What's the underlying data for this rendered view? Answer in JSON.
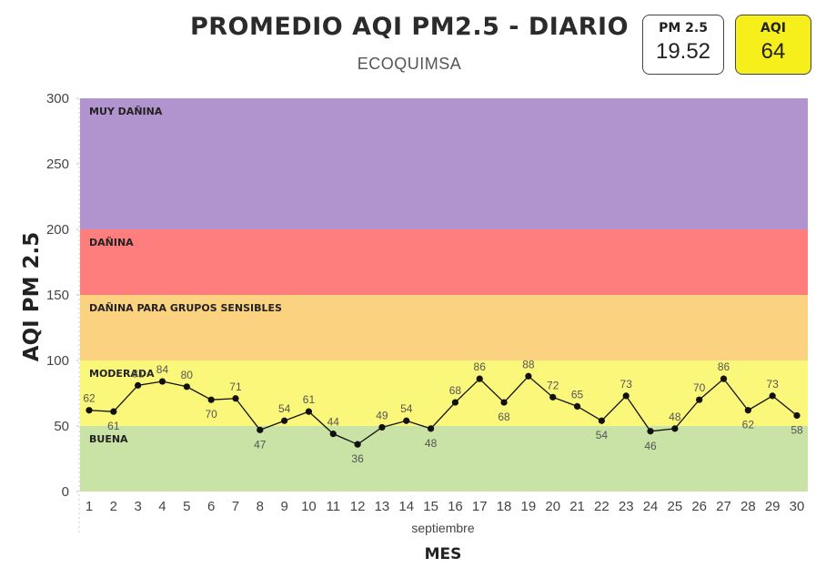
{
  "header": {
    "title": "PROMEDIO AQI PM2.5 - DIARIO",
    "subtitle": "ECOQUIMSA"
  },
  "kpis": {
    "pm25_label": "PM 2.5",
    "pm25_value": "19.52",
    "aqi_label": "AQI",
    "aqi_value": "64",
    "aqi_color": "#f7ef1b"
  },
  "chart_data": {
    "type": "line",
    "xlabel": "MES",
    "x_sublabel": "septiembre",
    "ylabel": "AQI PM 2.5",
    "ylim": [
      0,
      300
    ],
    "yticks": [
      0,
      50,
      100,
      150,
      200,
      250,
      300
    ],
    "x": [
      1,
      2,
      3,
      4,
      5,
      6,
      7,
      8,
      9,
      10,
      11,
      12,
      13,
      14,
      15,
      16,
      17,
      18,
      19,
      20,
      21,
      22,
      23,
      24,
      25,
      26,
      27,
      28,
      29,
      30
    ],
    "series": [
      {
        "values": [
          62,
          61,
          81,
          84,
          80,
          70,
          71,
          47,
          54,
          61,
          44,
          36,
          49,
          54,
          48,
          68,
          86,
          68,
          88,
          72,
          65,
          54,
          73,
          46,
          48,
          70,
          86,
          62,
          73,
          58
        ],
        "color": "#111111"
      }
    ],
    "bands": [
      {
        "label": "BUENA",
        "from": 0,
        "to": 50,
        "color": "#c9e2a5"
      },
      {
        "label": "MODERADA",
        "from": 50,
        "to": 100,
        "color": "#fbf77b"
      },
      {
        "label": "DAÑINA PARA GRUPOS SENSIBLES",
        "from": 100,
        "to": 150,
        "color": "#fbd27f"
      },
      {
        "label": "DAÑINA",
        "from": 150,
        "to": 200,
        "color": "#fd7e7c"
      },
      {
        "label": "MUY DAÑINA",
        "from": 200,
        "to": 300,
        "color": "#b193cd"
      }
    ],
    "grid": true
  }
}
